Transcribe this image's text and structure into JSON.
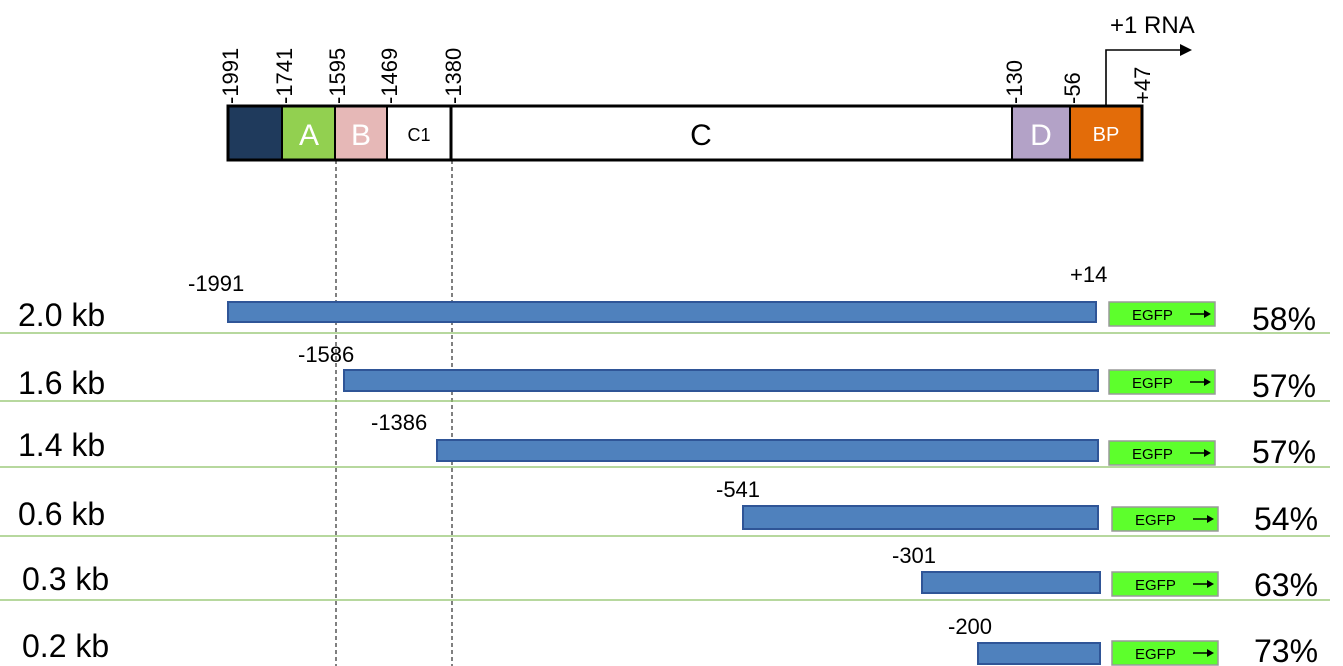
{
  "gene_map": {
    "tick_labels": [
      "-1991",
      "-1741",
      "-1595",
      "-1469",
      "-1380",
      "-130",
      "-56",
      "+47"
    ],
    "tss_label": "+1 RNA",
    "regions": [
      {
        "label": "",
        "color": "#1f3a5c"
      },
      {
        "label": "A",
        "color": "#92d050"
      },
      {
        "label": "B",
        "color": "#e6b8b7"
      },
      {
        "label": "C1",
        "color": "#ffffff"
      },
      {
        "label": "C",
        "color": "#ffffff"
      },
      {
        "label": "D",
        "color": "#b3a2c7"
      },
      {
        "label": "BP",
        "color": "#e36c09"
      }
    ]
  },
  "constructs": [
    {
      "name": "2.0 kb",
      "start_label": "-1991",
      "reporter": "EGFP",
      "percent": "58%"
    },
    {
      "name": "1.6 kb",
      "start_label": "-1586",
      "reporter": "EGFP",
      "percent": "57%"
    },
    {
      "name": "1.4 kb",
      "start_label": "-1386",
      "reporter": "EGFP",
      "percent": "57%"
    },
    {
      "name": "0.6 kb",
      "start_label": "-541",
      "reporter": "EGFP",
      "percent": "54%"
    },
    {
      "name": "0.3 kb",
      "start_label": "-301",
      "reporter": "EGFP",
      "percent": "63%"
    },
    {
      "name": "0.2 kb",
      "start_label": "-200",
      "reporter": "EGFP",
      "percent": "73%"
    }
  ],
  "end_label": "+14",
  "colors": {
    "construct_bar": "#4f81bd",
    "construct_bar_border": "#2f5597",
    "egfp_box": "#5dff2c",
    "separator": "#8cc063"
  }
}
